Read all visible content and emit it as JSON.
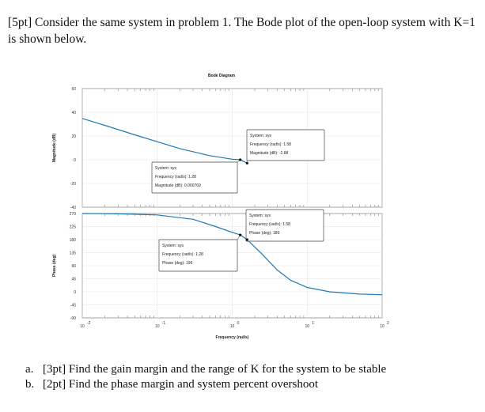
{
  "prompt": {
    "text": "[5pt] Consider the same system in problem 1. The Bode plot of the open-loop system with K=1 is shown below."
  },
  "questions": [
    {
      "letter": "a.",
      "text": "[3pt] Find the gain margin and the range of K for the system to be stable"
    },
    {
      "letter": "b.",
      "text": "[2pt] Find the phase margin and system percent overshoot"
    }
  ],
  "chart_data": {
    "type": "line",
    "title": "Bode Diagram",
    "xlabel": "Frequency  (rad/s)",
    "xscale": "log",
    "xlim": [
      0.01,
      100
    ],
    "xticks": [
      {
        "base": "10",
        "exp": "-2"
      },
      {
        "base": "10",
        "exp": "-1"
      },
      {
        "base": "10",
        "exp": "0"
      },
      {
        "base": "10",
        "exp": "1"
      },
      {
        "base": "10",
        "exp": "2"
      }
    ],
    "grid": true,
    "magnitude": {
      "ylabel": "Magnitude (dB)",
      "ylim": [
        -40,
        60
      ],
      "yticks": [
        "60",
        "40",
        "20",
        "0",
        "-20",
        "-40"
      ],
      "color": "#1f77b4",
      "series": [
        {
          "x": 0.01,
          "y": 34.8
        },
        {
          "x": 0.02,
          "y": 29.0
        },
        {
          "x": 0.05,
          "y": 21.0
        },
        {
          "x": 0.1,
          "y": 15.2
        },
        {
          "x": 0.2,
          "y": 9.4
        },
        {
          "x": 0.5,
          "y": 3.5
        },
        {
          "x": 1.0,
          "y": 0.5
        },
        {
          "x": 1.28,
          "y": 0.0
        },
        {
          "x": 1.58,
          "y": -2.88
        }
      ],
      "datatips": [
        {
          "lines": [
            "System: sys",
            "Frequency (rad/s): 1.28",
            "Magnitude (dB): 0.000769"
          ],
          "x": 1.28,
          "y": 0.000769
        },
        {
          "lines": [
            "System: sys",
            "Frequency (rad/s): 1.58",
            "Magnitude (dB): -2.88"
          ],
          "x": 1.58,
          "y": -2.88
        }
      ]
    },
    "phase": {
      "ylabel": "Phase (deg)",
      "ylim": [
        -90,
        270
      ],
      "yticks": [
        "270",
        "225",
        "180",
        "135",
        "90",
        "45",
        "0",
        "-45",
        "-90"
      ],
      "color": "#1f77b4",
      "series": [
        {
          "x": 0.01,
          "y": 270
        },
        {
          "x": 0.03,
          "y": 269
        },
        {
          "x": 0.1,
          "y": 265
        },
        {
          "x": 0.3,
          "y": 250
        },
        {
          "x": 0.6,
          "y": 225
        },
        {
          "x": 1.0,
          "y": 205
        },
        {
          "x": 1.28,
          "y": 196
        },
        {
          "x": 1.58,
          "y": 180
        },
        {
          "x": 2.5,
          "y": 130
        },
        {
          "x": 4.0,
          "y": 75
        },
        {
          "x": 6.0,
          "y": 40
        },
        {
          "x": 10,
          "y": 15
        },
        {
          "x": 20,
          "y": 0
        },
        {
          "x": 50,
          "y": -8
        },
        {
          "x": 100,
          "y": -10
        }
      ],
      "datatips": [
        {
          "lines": [
            "System: sys",
            "Frequency (rad/s): 1.28",
            "Phase (deg): 196"
          ],
          "x": 1.28,
          "y": 196
        },
        {
          "lines": [
            "System: sys",
            "Frequency (rad/s): 1.58",
            "Phase (deg): 180"
          ],
          "x": 1.58,
          "y": 180
        }
      ]
    }
  }
}
